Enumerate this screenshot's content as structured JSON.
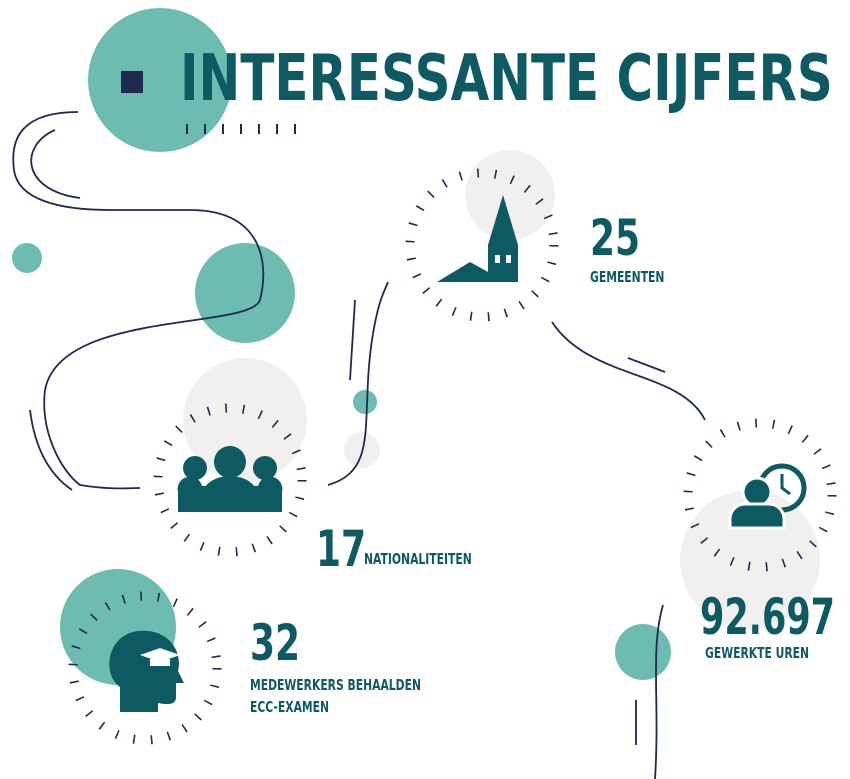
{
  "header": {
    "title": "INTERESSANTE CIJFERS"
  },
  "stats": [
    {
      "value": "25",
      "label": "GEMEENTEN"
    },
    {
      "value": "17",
      "label": "NATIONALITEITEN"
    },
    {
      "value": "32",
      "label_lines": [
        "MEDEWERKERS BEHAALDEN",
        "ECC-EXAMEN"
      ]
    },
    {
      "value": "92.697",
      "label": "GEWERKTE UREN"
    }
  ]
}
